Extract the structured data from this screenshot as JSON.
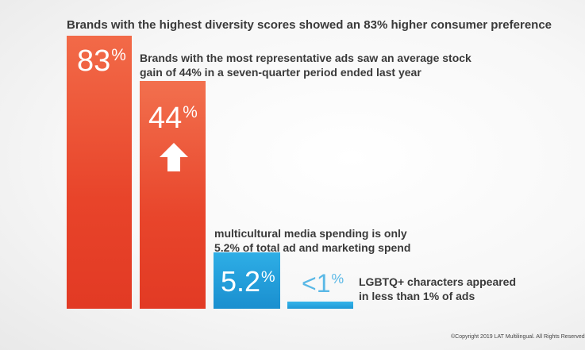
{
  "chart_data": {
    "type": "bar",
    "title": "Brands with the highest diversity scores showed an 83% higher consumer preference",
    "categories": [
      "Brands with the highest diversity scores showed an 83% higher consumer preference",
      "Brands with the most representative ads saw an average stock gain of 44% in a seven-quarter period ended last year",
      "multicultural media spending is only 5.2% of total ad and marketing spend",
      "LGBTQ+ characters appeared in less than 1% of ads"
    ],
    "values": [
      83,
      44,
      5.2,
      1
    ],
    "data_labels": [
      "83",
      "44",
      "5.2",
      "<1"
    ],
    "unit": "%",
    "annotations": {
      "stock_gain": [
        "Brands with the most representative ads saw an average stock",
        "gain of 44% in a seven-quarter period ended last year"
      ],
      "multicultural": [
        "multicultural media spending is only",
        "5.2% of total ad and marketing spend"
      ],
      "lgbtq": [
        "LGBTQ+ characters appeared",
        "in less than 1% of ads"
      ]
    },
    "colors": {
      "orange": "#e8442a",
      "blue": "#1a8fcf",
      "light_blue_label": "#5ab8e6"
    },
    "icons": [
      "up-arrow-icon"
    ],
    "grid": false
  },
  "footer": {
    "copyright": "©Copyright 2019 LAT Multilingual. All Rights Reserved"
  }
}
